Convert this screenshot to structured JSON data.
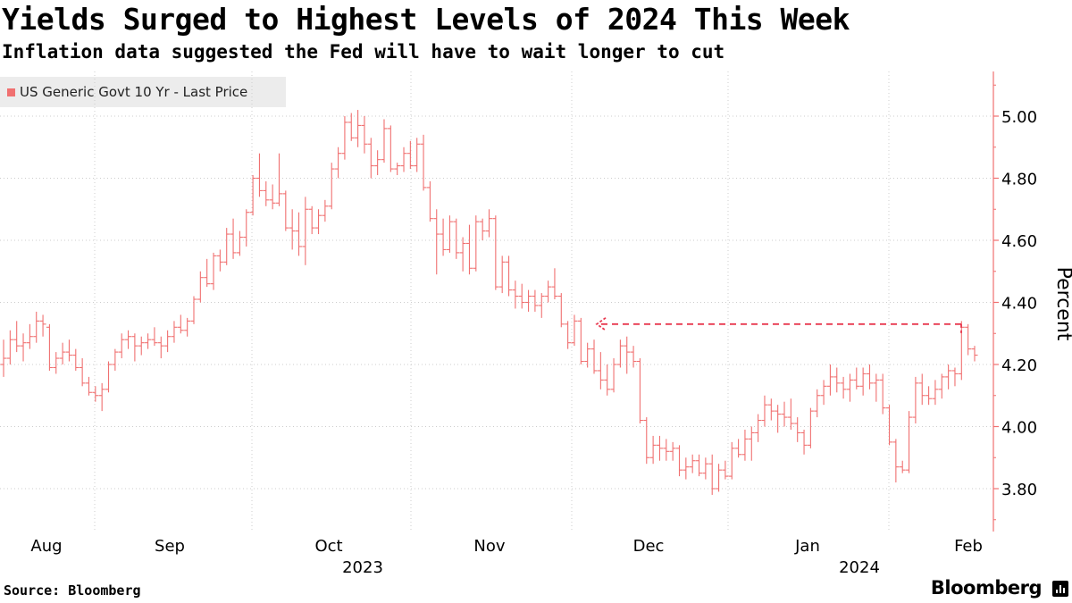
{
  "title": "Yields Surged to Highest Levels of 2024 This Week",
  "subtitle": "Inflation data suggested the Fed will have to wait longer to cut",
  "source": "Source: Bloomberg",
  "brand": "Bloomberg",
  "colors": {
    "series": "#f07070",
    "grid": "#cccccc",
    "axis": "#f07070",
    "arrow": "#e8384f"
  },
  "chart_data": {
    "type": "ohlc",
    "title": "Yields Surged to Highest Levels of 2024 This Week",
    "ylabel": "Percent",
    "xlabel": "",
    "ylim": [
      3.66,
      5.14
    ],
    "yticks": [
      3.8,
      4.0,
      4.2,
      4.4,
      4.6,
      4.8,
      5.0
    ],
    "ytick_labels": [
      "3.80",
      "4.00",
      "4.20",
      "4.40",
      "4.60",
      "4.80",
      "5.00"
    ],
    "grid": true,
    "legend": [
      {
        "label": "US Generic Govt 10 Yr - Last Price",
        "position": "top-left"
      }
    ],
    "x_month_labels": [
      "Aug",
      "Sep",
      "Oct",
      "Nov",
      "Dec",
      "Jan",
      "Feb"
    ],
    "x_year_labels": [
      "2023",
      "2024"
    ],
    "annotation": {
      "type": "dashed-arrow",
      "from_date": "Feb 2024 (latest high)",
      "to_date": "late Nov 2023",
      "level": 4.33
    },
    "series": [
      {
        "name": "US Generic Govt 10 Yr - Last Price",
        "columns": [
          "open",
          "high",
          "low",
          "close"
        ],
        "values": [
          [
            4.2,
            4.28,
            4.16,
            4.22
          ],
          [
            4.22,
            4.31,
            4.2,
            4.28
          ],
          [
            4.28,
            4.34,
            4.24,
            4.26
          ],
          [
            4.26,
            4.3,
            4.21,
            4.27
          ],
          [
            4.27,
            4.33,
            4.25,
            4.29
          ],
          [
            4.29,
            4.37,
            4.27,
            4.34
          ],
          [
            4.34,
            4.36,
            4.29,
            4.33
          ],
          [
            4.32,
            4.33,
            4.18,
            4.19
          ],
          [
            4.19,
            4.24,
            4.17,
            4.22
          ],
          [
            4.22,
            4.27,
            4.2,
            4.24
          ],
          [
            4.24,
            4.28,
            4.21,
            4.23
          ],
          [
            4.23,
            4.25,
            4.18,
            4.19
          ],
          [
            4.19,
            4.22,
            4.13,
            4.14
          ],
          [
            4.14,
            4.16,
            4.1,
            4.11
          ],
          [
            4.11,
            4.13,
            4.08,
            4.1
          ],
          [
            4.1,
            4.14,
            4.05,
            4.12
          ],
          [
            4.12,
            4.21,
            4.11,
            4.2
          ],
          [
            4.2,
            4.25,
            4.18,
            4.24
          ],
          [
            4.24,
            4.3,
            4.22,
            4.28
          ],
          [
            4.28,
            4.31,
            4.25,
            4.29
          ],
          [
            4.29,
            4.3,
            4.21,
            4.26
          ],
          [
            4.26,
            4.29,
            4.23,
            4.27
          ],
          [
            4.27,
            4.3,
            4.25,
            4.28
          ],
          [
            4.28,
            4.32,
            4.26,
            4.27
          ],
          [
            4.27,
            4.29,
            4.22,
            4.26
          ],
          [
            4.26,
            4.31,
            4.24,
            4.29
          ],
          [
            4.29,
            4.34,
            4.27,
            4.32
          ],
          [
            4.32,
            4.36,
            4.3,
            4.31
          ],
          [
            4.31,
            4.35,
            4.29,
            4.34
          ],
          [
            4.34,
            4.42,
            4.33,
            4.41
          ],
          [
            4.41,
            4.5,
            4.4,
            4.48
          ],
          [
            4.48,
            4.54,
            4.45,
            4.46
          ],
          [
            4.46,
            4.56,
            4.44,
            4.55
          ],
          [
            4.55,
            4.57,
            4.5,
            4.53
          ],
          [
            4.53,
            4.64,
            4.52,
            4.62
          ],
          [
            4.62,
            4.67,
            4.54,
            4.56
          ],
          [
            4.56,
            4.63,
            4.55,
            4.61
          ],
          [
            4.61,
            4.7,
            4.58,
            4.69
          ],
          [
            4.69,
            4.81,
            4.68,
            4.8
          ],
          [
            4.8,
            4.88,
            4.74,
            4.76
          ],
          [
            4.76,
            4.79,
            4.71,
            4.73
          ],
          [
            4.73,
            4.78,
            4.7,
            4.72
          ],
          [
            4.72,
            4.88,
            4.71,
            4.75
          ],
          [
            4.75,
            4.76,
            4.63,
            4.64
          ],
          [
            4.64,
            4.7,
            4.57,
            4.63
          ],
          [
            4.63,
            4.69,
            4.55,
            4.58
          ],
          [
            4.58,
            4.74,
            4.52,
            4.7
          ],
          [
            4.7,
            4.71,
            4.62,
            4.64
          ],
          [
            4.64,
            4.7,
            4.62,
            4.68
          ],
          [
            4.68,
            4.73,
            4.66,
            4.71
          ],
          [
            4.71,
            4.85,
            4.7,
            4.83
          ],
          [
            4.83,
            4.9,
            4.8,
            4.88
          ],
          [
            4.88,
            5.0,
            4.86,
            4.98
          ],
          [
            4.98,
            5.01,
            4.92,
            4.93
          ],
          [
            4.93,
            5.02,
            4.9,
            4.97
          ],
          [
            4.97,
            5.0,
            4.88,
            4.91
          ],
          [
            4.91,
            4.93,
            4.8,
            4.84
          ],
          [
            4.84,
            4.89,
            4.81,
            4.86
          ],
          [
            4.86,
            4.99,
            4.85,
            4.96
          ],
          [
            4.96,
            4.97,
            4.82,
            4.83
          ],
          [
            4.83,
            4.85,
            4.81,
            4.84
          ],
          [
            4.84,
            4.9,
            4.82,
            4.88
          ],
          [
            4.88,
            4.92,
            4.83,
            4.84
          ],
          [
            4.84,
            4.93,
            4.82,
            4.91
          ],
          [
            4.91,
            4.94,
            4.76,
            4.77
          ],
          [
            4.77,
            4.79,
            4.66,
            4.67
          ],
          [
            4.67,
            4.7,
            4.49,
            4.62
          ],
          [
            4.62,
            4.67,
            4.55,
            4.57
          ],
          [
            4.57,
            4.68,
            4.56,
            4.66
          ],
          [
            4.66,
            4.67,
            4.54,
            4.56
          ],
          [
            4.56,
            4.61,
            4.5,
            4.59
          ],
          [
            4.59,
            4.65,
            4.49,
            4.51
          ],
          [
            4.51,
            4.68,
            4.5,
            4.66
          ],
          [
            4.66,
            4.67,
            4.6,
            4.63
          ],
          [
            4.63,
            4.7,
            4.61,
            4.67
          ],
          [
            4.67,
            4.68,
            4.44,
            4.45
          ],
          [
            4.45,
            4.55,
            4.43,
            4.53
          ],
          [
            4.53,
            4.55,
            4.42,
            4.44
          ],
          [
            4.44,
            4.47,
            4.38,
            4.42
          ],
          [
            4.42,
            4.46,
            4.38,
            4.4
          ],
          [
            4.4,
            4.44,
            4.37,
            4.42
          ],
          [
            4.42,
            4.44,
            4.37,
            4.39
          ],
          [
            4.39,
            4.43,
            4.35,
            4.42
          ],
          [
            4.42,
            4.47,
            4.4,
            4.45
          ],
          [
            4.45,
            4.51,
            4.41,
            4.42
          ],
          [
            4.42,
            4.43,
            4.32,
            4.33
          ],
          [
            4.33,
            4.34,
            4.25,
            4.27
          ],
          [
            4.27,
            4.36,
            4.26,
            4.34
          ],
          [
            4.34,
            4.35,
            4.2,
            4.21
          ],
          [
            4.21,
            4.27,
            4.19,
            4.25
          ],
          [
            4.25,
            4.28,
            4.17,
            4.18
          ],
          [
            4.18,
            4.24,
            4.12,
            4.15
          ],
          [
            4.15,
            4.2,
            4.1,
            4.12
          ],
          [
            4.12,
            4.22,
            4.11,
            4.2
          ],
          [
            4.2,
            4.28,
            4.19,
            4.26
          ],
          [
            4.26,
            4.29,
            4.17,
            4.24
          ],
          [
            4.24,
            4.26,
            4.19,
            4.21
          ],
          [
            4.21,
            4.22,
            4.01,
            4.02
          ],
          [
            4.02,
            4.03,
            3.88,
            3.9
          ],
          [
            3.9,
            3.97,
            3.88,
            3.94
          ],
          [
            3.94,
            3.97,
            3.89,
            3.93
          ],
          [
            3.93,
            3.96,
            3.89,
            3.92
          ],
          [
            3.92,
            3.95,
            3.89,
            3.93
          ],
          [
            3.93,
            3.94,
            3.84,
            3.86
          ],
          [
            3.86,
            3.9,
            3.83,
            3.87
          ],
          [
            3.87,
            3.91,
            3.85,
            3.89
          ],
          [
            3.89,
            3.91,
            3.84,
            3.85
          ],
          [
            3.85,
            3.9,
            3.83,
            3.88
          ],
          [
            3.88,
            3.91,
            3.78,
            3.8
          ],
          [
            3.8,
            3.88,
            3.79,
            3.86
          ],
          [
            3.86,
            3.89,
            3.83,
            3.84
          ],
          [
            3.84,
            3.95,
            3.83,
            3.93
          ],
          [
            3.93,
            3.96,
            3.9,
            3.91
          ],
          [
            3.91,
            3.99,
            3.89,
            3.96
          ],
          [
            3.96,
            4.0,
            3.89,
            3.98
          ],
          [
            3.98,
            4.04,
            3.95,
            4.02
          ],
          [
            4.02,
            4.1,
            4.0,
            4.07
          ],
          [
            4.07,
            4.09,
            4.02,
            4.05
          ],
          [
            4.05,
            4.07,
            3.98,
            4.04
          ],
          [
            4.04,
            4.08,
            4.0,
            4.03
          ],
          [
            4.03,
            4.09,
            3.99,
            4.01
          ],
          [
            4.01,
            4.03,
            3.95,
            3.98
          ],
          [
            3.98,
            3.99,
            3.91,
            3.94
          ],
          [
            3.94,
            4.06,
            3.93,
            4.05
          ],
          [
            4.05,
            4.12,
            4.03,
            4.1
          ],
          [
            4.1,
            4.15,
            4.07,
            4.13
          ],
          [
            4.13,
            4.2,
            4.1,
            4.16
          ],
          [
            4.16,
            4.19,
            4.11,
            4.14
          ],
          [
            4.14,
            4.16,
            4.09,
            4.12
          ],
          [
            4.12,
            4.17,
            4.08,
            4.15
          ],
          [
            4.15,
            4.19,
            4.12,
            4.13
          ],
          [
            4.13,
            4.19,
            4.1,
            4.17
          ],
          [
            4.17,
            4.2,
            4.12,
            4.14
          ],
          [
            4.14,
            4.17,
            4.08,
            4.15
          ],
          [
            4.15,
            4.17,
            4.04,
            4.06
          ],
          [
            4.06,
            4.07,
            3.94,
            3.95
          ],
          [
            3.95,
            3.96,
            3.82,
            3.87
          ],
          [
            3.87,
            3.89,
            3.85,
            3.86
          ],
          [
            3.86,
            4.05,
            3.85,
            4.03
          ],
          [
            4.03,
            4.16,
            4.01,
            4.14
          ],
          [
            4.14,
            4.17,
            4.07,
            4.1
          ],
          [
            4.1,
            4.13,
            4.07,
            4.09
          ],
          [
            4.09,
            4.15,
            4.07,
            4.12
          ],
          [
            4.12,
            4.17,
            4.09,
            4.16
          ],
          [
            4.16,
            4.2,
            4.12,
            4.18
          ],
          [
            4.18,
            4.19,
            4.13,
            4.17
          ],
          [
            4.17,
            4.34,
            4.15,
            4.32
          ],
          [
            4.32,
            4.33,
            4.23,
            4.25
          ],
          [
            4.25,
            4.26,
            4.21,
            4.23
          ]
        ]
      }
    ]
  }
}
